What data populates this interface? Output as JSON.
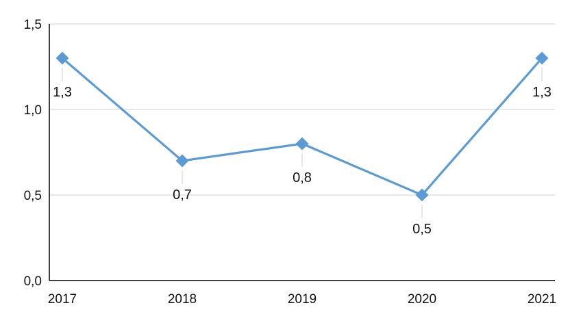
{
  "chart_data": {
    "type": "line",
    "categories": [
      "2017",
      "2018",
      "2019",
      "2020",
      "2021"
    ],
    "series": [
      {
        "values": [
          1.3,
          0.7,
          0.8,
          0.5,
          1.3
        ],
        "color": "#5b9bd5",
        "marker": "diamond"
      }
    ],
    "data_labels": [
      "1,3",
      "0,7",
      "0,8",
      "0,5",
      "1,3"
    ],
    "y_ticks": [
      0,
      0.5,
      1.0,
      1.5
    ],
    "y_tick_labels": [
      "0,0",
      "0,5",
      "1,0",
      "1,5"
    ],
    "ylim": [
      0,
      1.5
    ],
    "grid": true,
    "legend": "none",
    "title": "",
    "xlabel": "",
    "ylabel": "",
    "colors": {
      "line": "#5b9bd5",
      "grid": "#d9d9d9",
      "axis": "#000000",
      "leader": "#d9d9d9"
    }
  }
}
